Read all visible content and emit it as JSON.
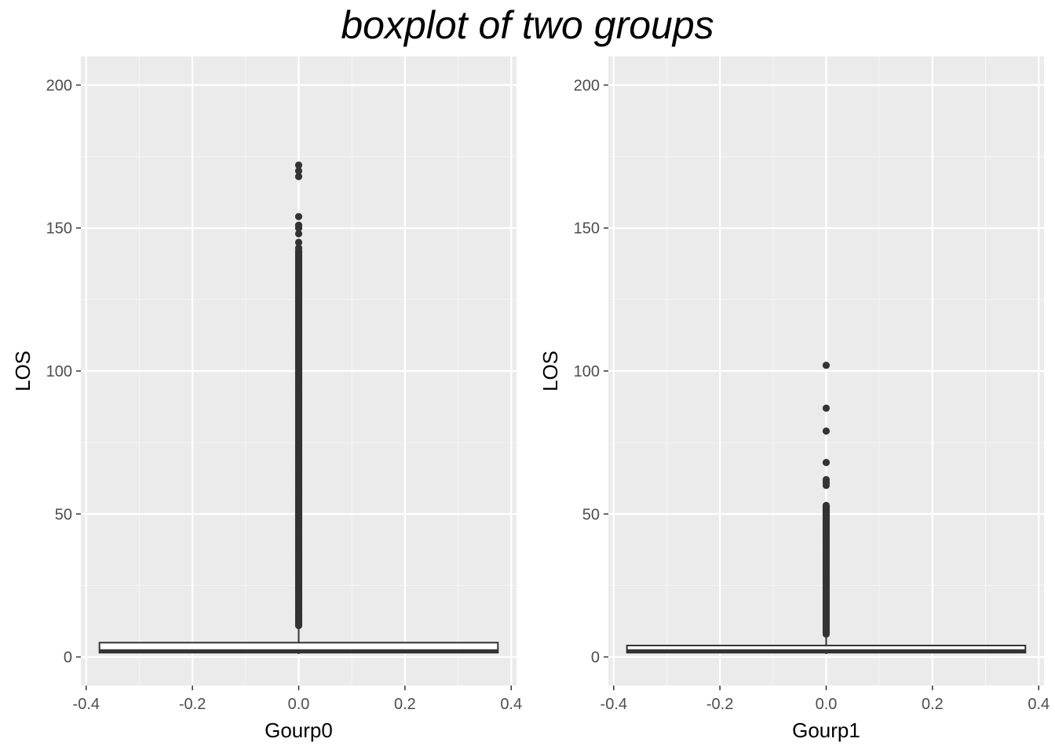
{
  "title": "boxplot of two groups",
  "chart_data": [
    {
      "type": "boxplot",
      "xlabel": "Gourp0",
      "ylabel": "LOS",
      "xlim": [
        -0.41,
        0.41
      ],
      "ylim": [
        -10,
        210
      ],
      "xticks": [
        -0.4,
        -0.2,
        0.0,
        0.2,
        0.4
      ],
      "xtick_labels": [
        "-0.4",
        "-0.2",
        "0.0",
        "0.2",
        "0.4"
      ],
      "yticks": [
        0,
        50,
        100,
        150,
        200
      ],
      "ytick_labels": [
        "0",
        "50",
        "100",
        "150",
        "200"
      ],
      "grid": true,
      "box": {
        "x_min": -0.375,
        "x_max": 0.375,
        "x_center": 0.0,
        "lower_whisker": 1,
        "q1": 1.5,
        "median": 2,
        "q3": 5,
        "upper_whisker": 10
      },
      "outliers_continuous_range": [
        11,
        142
      ],
      "outliers": [
        143,
        145,
        148,
        150,
        151,
        154,
        168,
        170,
        172
      ]
    },
    {
      "type": "boxplot",
      "xlabel": "Gourp1",
      "ylabel": "LOS",
      "xlim": [
        -0.41,
        0.41
      ],
      "ylim": [
        -10,
        210
      ],
      "xticks": [
        -0.4,
        -0.2,
        0.0,
        0.2,
        0.4
      ],
      "xtick_labels": [
        "-0.4",
        "-0.2",
        "0.0",
        "0.2",
        "0.4"
      ],
      "yticks": [
        0,
        50,
        100,
        150,
        200
      ],
      "ytick_labels": [
        "0",
        "50",
        "100",
        "150",
        "200"
      ],
      "grid": true,
      "box": {
        "x_min": -0.375,
        "x_max": 0.375,
        "x_center": 0.0,
        "lower_whisker": 1,
        "q1": 1.5,
        "median": 2,
        "q3": 4,
        "upper_whisker": 7
      },
      "outliers_continuous_range": [
        8,
        53
      ],
      "outliers": [
        60,
        61,
        62,
        68,
        79,
        87,
        102
      ]
    }
  ],
  "colors": {
    "panel_bg": "#ebebeb",
    "grid_major": "#ffffff",
    "grid_minor": "#f5f5f5",
    "box_fill": "#ffffff",
    "box_line": "#333333",
    "outlier": "#333333",
    "tick": "#333333"
  }
}
